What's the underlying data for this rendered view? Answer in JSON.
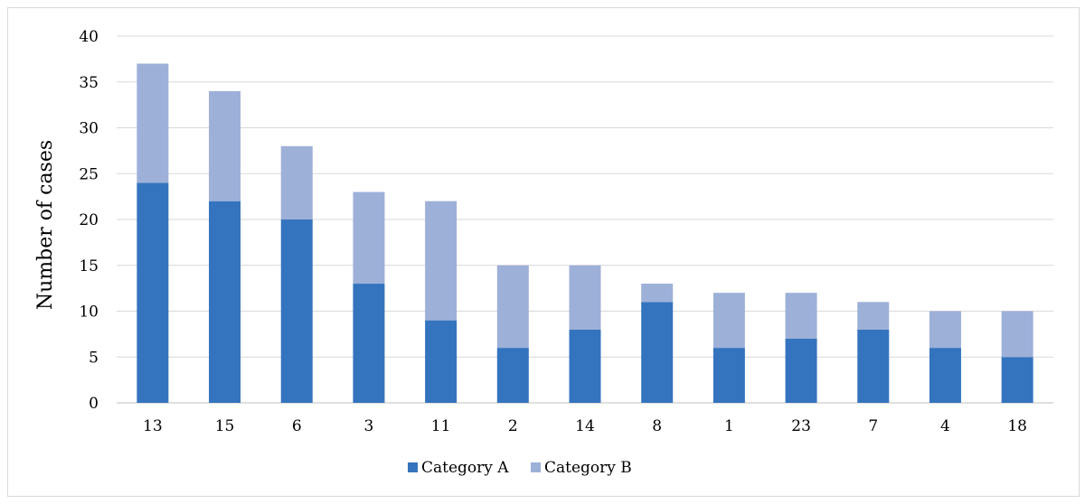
{
  "chart_data": {
    "type": "bar",
    "stacked": true,
    "categories": [
      "13",
      "15",
      "6",
      "3",
      "11",
      "2",
      "14",
      "8",
      "1",
      "23",
      "7",
      "4",
      "18"
    ],
    "series": [
      {
        "name": "Category A",
        "color": "#3474be",
        "values": [
          24,
          22,
          20,
          13,
          9,
          6,
          8,
          11,
          6,
          7,
          8,
          6,
          5
        ]
      },
      {
        "name": "Category B",
        "color": "#9db0d8",
        "values": [
          13,
          12,
          8,
          10,
          13,
          9,
          7,
          2,
          6,
          5,
          3,
          4,
          5
        ]
      }
    ],
    "title": "",
    "xlabel": "",
    "ylabel": "Number of cases",
    "ylim": [
      0,
      40
    ],
    "yticks": [
      "0",
      "5",
      "10",
      "15",
      "20",
      "25",
      "30",
      "35",
      "40"
    ],
    "grid": true,
    "legend": "bottom-center"
  }
}
